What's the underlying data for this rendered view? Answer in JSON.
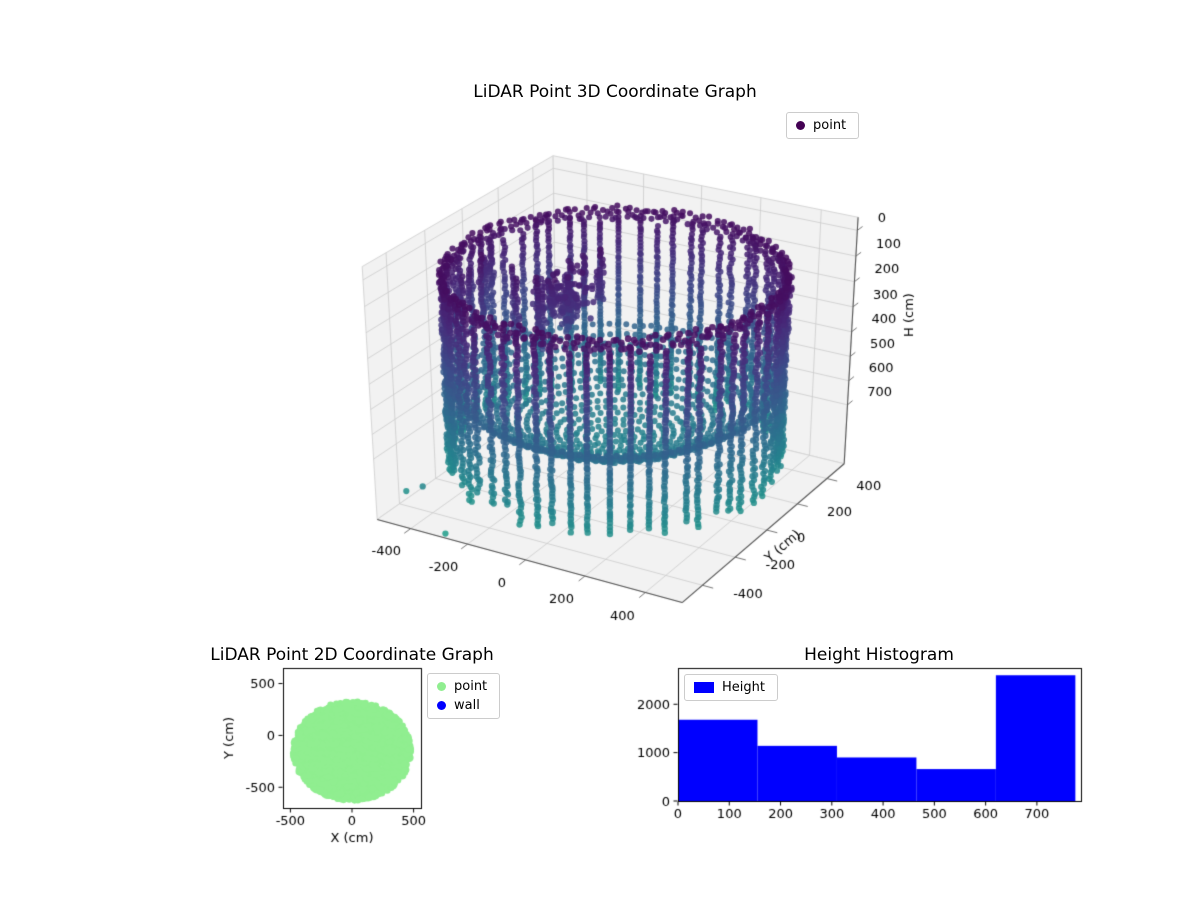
{
  "figure": {
    "background": "#ffffff"
  },
  "chart_data": [
    {
      "id": "lidar-3d",
      "type": "scatter",
      "projection": "3d",
      "title": "LiDAR Point 3D Coordinate Graph",
      "ylabel": "Y (cm)",
      "zlabel": "H (cm)",
      "legend": {
        "entries": [
          {
            "label": "point",
            "color": "#440154",
            "marker": "dot"
          }
        ]
      },
      "axes": {
        "xlim": [
          -520,
          520
        ],
        "ylim": [
          -520,
          520
        ],
        "zlim": [
          -50,
          950
        ],
        "z_inverted": true,
        "x_ticks": [
          -400,
          -200,
          0,
          200,
          400
        ],
        "y_ticks": [
          -400,
          -200,
          0,
          200,
          400
        ],
        "z_ticks": [
          0,
          100,
          200,
          300,
          400,
          500,
          600,
          700
        ],
        "grid": true
      },
      "colormap": {
        "name": "viridis",
        "vmin": 0,
        "vmax": 1450
      },
      "point_cloud": {
        "description": "cylindrical LiDAR scan: dark-purple top rim, wall columns grading purple-to-teal downward, teal bowl-shaped interior floor, purple noise cluster upper-left, few teal outliers lower-left",
        "wall": {
          "radius": 500,
          "columns": 58,
          "h_top": 80,
          "h_bottom": 840,
          "h_step": 13
        },
        "rim": {
          "radius": 500,
          "h_levels": [
            60,
            78,
            96
          ],
          "points_per_ring": 150
        },
        "bowl": {
          "radius": 470,
          "edge_h": 520,
          "center_h": 730,
          "rings": 16
        },
        "noise": {
          "x_range": [
            -500,
            -140
          ],
          "y_range": [
            -180,
            260
          ],
          "h_range": [
            60,
            400
          ],
          "columns": 16,
          "blob_center": [
            -170,
            -10,
            200
          ],
          "blob_points": 130
        },
        "outliers": [
          [
            -350,
            -520,
            760
          ],
          [
            -250,
            -560,
            900
          ],
          [
            -430,
            -490,
            820
          ]
        ]
      }
    },
    {
      "id": "lidar-2d",
      "type": "scatter",
      "title": "LiDAR Point 2D Coordinate Graph",
      "xlabel": "X (cm)",
      "ylabel": "Y (cm)",
      "legend": {
        "entries": [
          {
            "label": "point",
            "color": "#90ee90",
            "marker": "dot"
          },
          {
            "label": "wall",
            "color": "#0000ff",
            "marker": "dot"
          }
        ]
      },
      "axes": {
        "xlim": [
          -560,
          560
        ],
        "ylim": [
          -700,
          650
        ],
        "x_ticks": [
          -500,
          0,
          500
        ],
        "y_ticks": [
          -500,
          0,
          500
        ]
      },
      "blob": {
        "center": [
          0,
          -150
        ],
        "radius": 478,
        "points": 2400,
        "color": "#90ee90"
      }
    },
    {
      "id": "height-histogram",
      "type": "histogram",
      "title": "Height Histogram",
      "legend": {
        "entries": [
          {
            "label": "Height",
            "color": "#0000ff",
            "marker": "patch"
          }
        ]
      },
      "axes": {
        "xlim": [
          0,
          786
        ],
        "ylim": [
          0,
          2750
        ],
        "x_ticks": [
          0,
          100,
          200,
          300,
          400,
          500,
          600,
          700
        ],
        "y_ticks": [
          0,
          1000,
          2000
        ]
      },
      "bar_color": "#0000ff",
      "bin_edges": [
        0,
        155,
        310,
        465,
        620,
        775
      ],
      "counts": [
        1680,
        1140,
        900,
        660,
        2600
      ]
    }
  ]
}
